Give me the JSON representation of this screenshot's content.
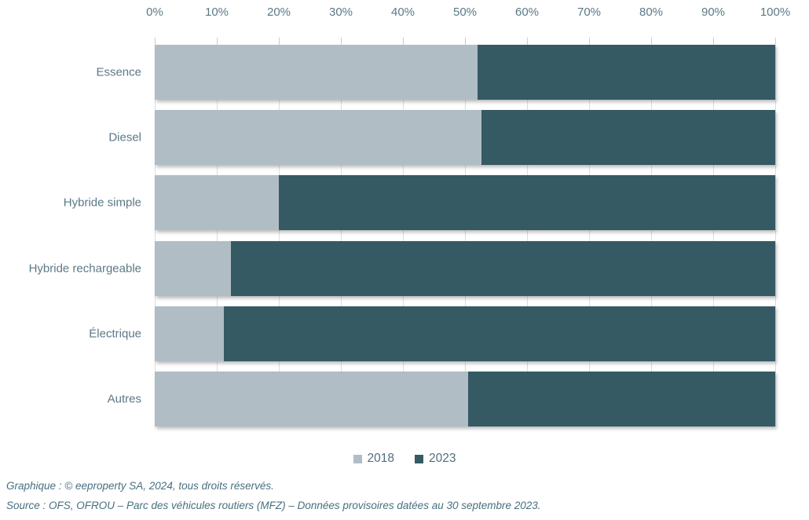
{
  "chart_data": {
    "type": "bar",
    "variant": "horizontal-stacked-100pct",
    "title": "",
    "categories": [
      "Essence",
      "Diesel",
      "Hybride simple",
      "Hybride rechargeable",
      "Électrique",
      "Autres"
    ],
    "series": [
      {
        "name": "2018",
        "color": "#b1bdc4",
        "values": [
          52,
          52.6,
          20,
          12.3,
          11.1,
          50.5
        ]
      },
      {
        "name": "2023",
        "color": "#355a64",
        "values": [
          48,
          47.4,
          80,
          87.7,
          88.9,
          49.5
        ]
      }
    ],
    "x_ticks": [
      "0%",
      "10%",
      "20%",
      "30%",
      "40%",
      "50%",
      "60%",
      "70%",
      "80%",
      "90%",
      "100%"
    ],
    "xlim": [
      0,
      100
    ],
    "xlabel": "",
    "ylabel": "",
    "grid": true,
    "axis_position": "top",
    "legend_position": "bottom-center"
  },
  "colors": {
    "series_2018": "#b1bdc4",
    "series_2023": "#355a64",
    "axis_text": "#5b7986",
    "gridline": "#dadde0",
    "footer_text": "#47707f",
    "background": "#ffffff"
  },
  "footer": {
    "line1": "Graphique : © eeproperty SA, 2024, tous droits réservés.",
    "line2": "Source : OFS, OFROU – Parc des véhicules routiers (MFZ) – Données provisoires datées au 30 septembre 2023."
  }
}
